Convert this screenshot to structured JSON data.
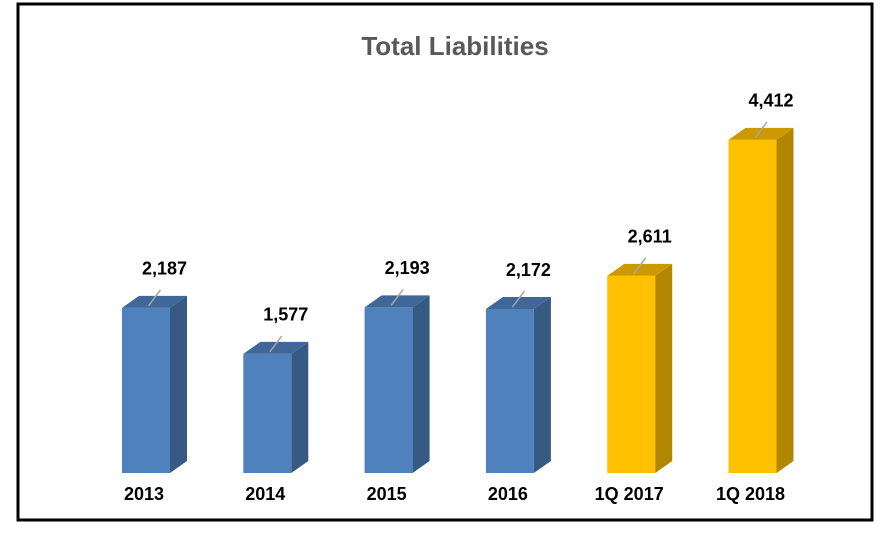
{
  "chart_data": {
    "type": "bar3d",
    "title": "Total Liabilities",
    "categories": [
      "2013",
      "2014",
      "2015",
      "2016",
      "1Q 2017",
      "1Q 2018"
    ],
    "values": [
      2187,
      1577,
      2193,
      2172,
      2611,
      4412
    ],
    "value_labels": [
      "2,187",
      "1,577",
      "2,193",
      "2,172",
      "2,611",
      "4,412"
    ],
    "colors": [
      "#4f81bd",
      "#4f81bd",
      "#4f81bd",
      "#4f81bd",
      "#ffc000",
      "#ffc000"
    ]
  }
}
